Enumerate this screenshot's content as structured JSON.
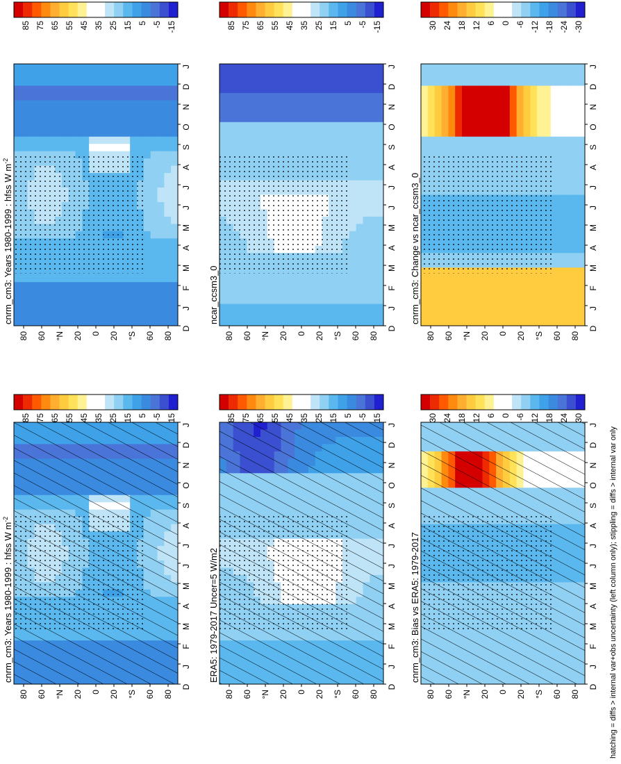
{
  "caption": "hatching = diffs > internal var+obs uncertainty (left column only); stippling = diffs > internal var only",
  "palettes": {
    "abs": [
      "#d40000",
      "#ee2a00",
      "#ff5a00",
      "#ff8a10",
      "#ffae30",
      "#ffcc40",
      "#ffe25a",
      "#fff294",
      "#ffffff",
      "#ffffff",
      "#bfe4f7",
      "#8fd0f3",
      "#5ab8ee",
      "#3fa2e8",
      "#3a8ae0",
      "#4a74d8",
      "#3a50d0",
      "#2020d0"
    ],
    "diff": [
      "#d40000",
      "#ee2a00",
      "#ff5a00",
      "#ff8a10",
      "#ffae30",
      "#ffcc40",
      "#ffe25a",
      "#fff294",
      "#ffffff",
      "#ffffff",
      "#bfe4f7",
      "#8fd0f3",
      "#5ab8ee",
      "#3fa2e8",
      "#3a8ae0",
      "#4a74d8",
      "#3a50d0",
      "#2020d0"
    ]
  },
  "colorbars": [
    {
      "labels": [
        "85",
        "75",
        "65",
        "55",
        "45",
        "35",
        "25",
        "15",
        "5",
        "-5",
        "-15"
      ]
    },
    {
      "labels": [
        "85",
        "75",
        "65",
        "55",
        "45",
        "35",
        "25",
        "15",
        "5",
        "-5",
        "-15"
      ]
    },
    {
      "labels": [
        "30",
        "24",
        "18",
        "12",
        "6",
        "0",
        "-6",
        "-12",
        "-18",
        "-24",
        "-30"
      ]
    },
    {
      "labels": [
        "85",
        "75",
        "65",
        "55",
        "45",
        "35",
        "25",
        "15",
        "5",
        "-5",
        "-15"
      ]
    },
    {
      "labels": [
        "85",
        "75",
        "65",
        "55",
        "45",
        "35",
        "25",
        "15",
        "5",
        "-5",
        "-15"
      ]
    },
    {
      "labels": [
        "30",
        "24",
        "18",
        "12",
        "6",
        "0",
        "-6",
        "-12",
        "-18",
        "-24",
        "-30"
      ]
    }
  ],
  "chart_data": [
    {
      "type": "heatmap",
      "title": "cnrm_cm3: Years 1980-1999 : hfss W m",
      "title_sup": "-2",
      "months": [
        "D",
        "J",
        "F",
        "M",
        "A",
        "M",
        "J",
        "J",
        "A",
        "S",
        "O",
        "N",
        "D",
        "J"
      ],
      "lat_ticks": [
        "80",
        "60",
        "°N",
        "20",
        "0",
        "20",
        "°S",
        "60",
        "80"
      ],
      "field": "abs",
      "hatching": true,
      "stippling": true
    },
    {
      "type": "heatmap",
      "title": "ERA5: 1979-2017 Uncer=5 W/m2",
      "months": [
        "D",
        "J",
        "F",
        "M",
        "A",
        "M",
        "J",
        "J",
        "A",
        "S",
        "O",
        "N",
        "D",
        "J"
      ],
      "lat_ticks": [
        "80",
        "60",
        "°N",
        "20",
        "0",
        "20",
        "°S",
        "60",
        "80"
      ],
      "field": "abs_obs",
      "hatching": true,
      "stippling": true
    },
    {
      "type": "heatmap",
      "title": "cnrm_cm3: Bias vs ERA5: 1979-2017",
      "months": [
        "D",
        "J",
        "F",
        "M",
        "A",
        "M",
        "J",
        "J",
        "A",
        "S",
        "O",
        "N",
        "D",
        "J"
      ],
      "lat_ticks": [
        "80",
        "60",
        "°N",
        "20",
        "0",
        "20",
        "°S",
        "60",
        "80"
      ],
      "field": "bias",
      "hatching": true,
      "stippling": true
    },
    {
      "type": "heatmap",
      "title": "cnrm_cm3: Years 1980-1999 : hfss W m",
      "title_sup": "-2",
      "months": [
        "D",
        "J",
        "F",
        "M",
        "A",
        "M",
        "J",
        "J",
        "A",
        "S",
        "O",
        "N",
        "D",
        "J"
      ],
      "lat_ticks": [
        "80",
        "60",
        "°N",
        "20",
        "0",
        "20",
        "°S",
        "60",
        "80"
      ],
      "field": "abs",
      "hatching": false,
      "stippling": true
    },
    {
      "type": "heatmap",
      "title": "ncar_ccsm3_0",
      "months": [
        "D",
        "J",
        "F",
        "M",
        "A",
        "M",
        "J",
        "J",
        "A",
        "S",
        "O",
        "N",
        "D",
        "J"
      ],
      "lat_ticks": [
        "80",
        "60",
        "°N",
        "20",
        "0",
        "20",
        "°S",
        "60",
        "80"
      ],
      "field": "abs_ncar",
      "hatching": false,
      "stippling": true
    },
    {
      "type": "heatmap",
      "title": "cnrm_cm3: Change vs ncar_ccsm3_0",
      "months": [
        "D",
        "J",
        "F",
        "M",
        "A",
        "M",
        "J",
        "J",
        "A",
        "S",
        "O",
        "N",
        "D",
        "J"
      ],
      "lat_ticks": [
        "80",
        "60",
        "°N",
        "20",
        "0",
        "20",
        "°S",
        "60",
        "80"
      ],
      "field": "change",
      "hatching": false,
      "stippling": true
    }
  ]
}
